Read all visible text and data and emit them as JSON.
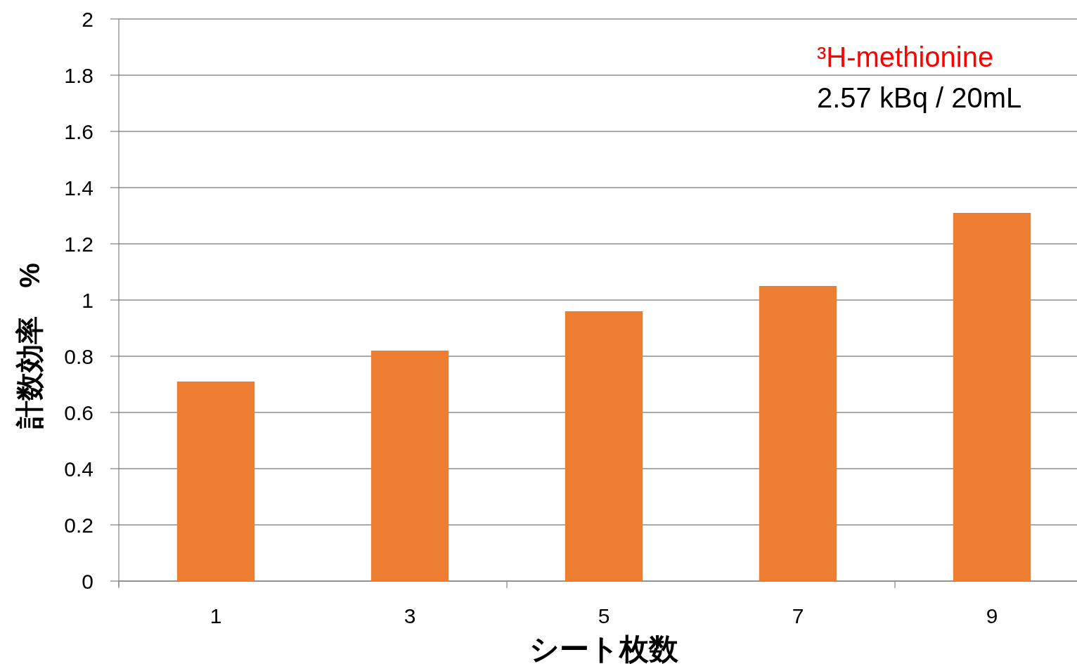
{
  "chart_data": {
    "type": "bar",
    "xlabel": "シート枚数",
    "ylabel": "計数効率　%",
    "annotations": [
      "³H-methionine",
      "2.57 kBq / 20mL"
    ],
    "categories": [
      "1",
      "3",
      "5",
      "7",
      "9"
    ],
    "values": [
      0.71,
      0.82,
      0.96,
      1.05,
      1.31
    ],
    "color": "#ed7d31",
    "ylim": [
      0,
      2
    ],
    "yticks": [
      0,
      0.2,
      0.4,
      0.6,
      0.8,
      1,
      1.2,
      1.4,
      1.6,
      1.8,
      2
    ],
    "grid": "y"
  }
}
